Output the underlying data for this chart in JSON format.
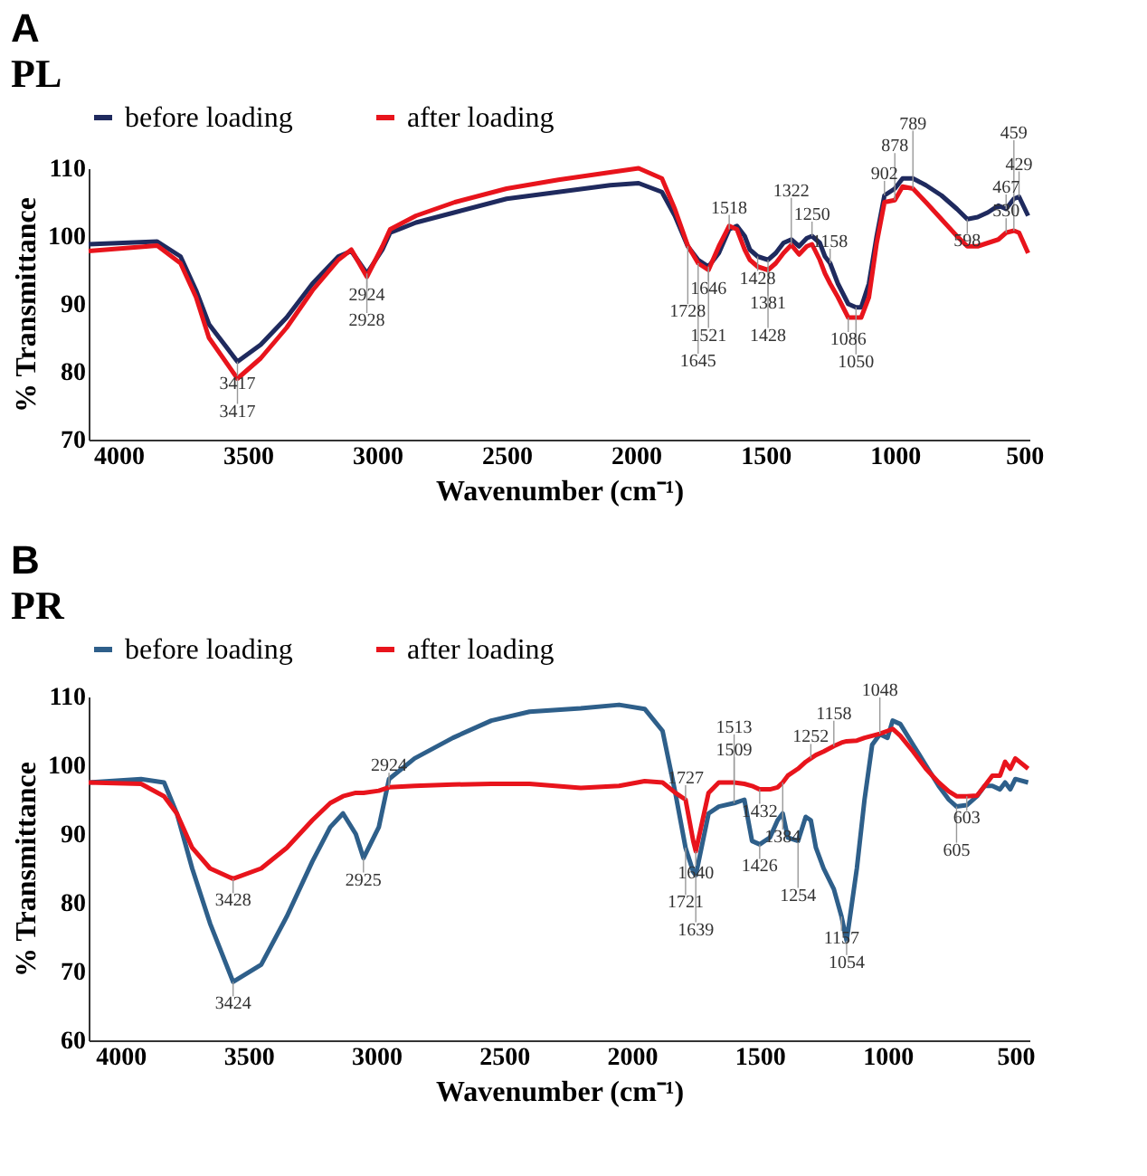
{
  "chart_data": [
    {
      "type": "line",
      "title": "A",
      "subtitle": "PL",
      "xlabel": "Wavenumber (cm⁻¹)",
      "ylabel": "% Transmittance",
      "legend": "top",
      "grid": false,
      "xlim": [
        4115,
        480
      ],
      "ylim": [
        70,
        110
      ],
      "xticks": [
        4000,
        3500,
        3000,
        2500,
        2000,
        1500,
        1000,
        500
      ],
      "yticks": [
        70,
        80,
        90,
        100,
        110
      ],
      "x": [
        4115,
        3850,
        3760,
        3700,
        3650,
        3540,
        3450,
        3350,
        3250,
        3150,
        3100,
        3040,
        2980,
        2950,
        2850,
        2700,
        2500,
        2300,
        2100,
        1990,
        1900,
        1850,
        1800,
        1760,
        1720,
        1680,
        1640,
        1610,
        1580,
        1560,
        1530,
        1490,
        1460,
        1430,
        1400,
        1370,
        1340,
        1320,
        1290,
        1270,
        1250,
        1220,
        1180,
        1150,
        1130,
        1100,
        1070,
        1040,
        1000,
        970,
        930,
        880,
        820,
        760,
        720,
        680,
        640,
        600,
        570,
        540,
        520,
        485
      ],
      "series": [
        {
          "name": "before loading",
          "color": "#1f2a5e",
          "values": [
            98.8,
            99.2,
            97,
            92,
            87,
            81.5,
            84,
            88,
            93,
            97,
            97.8,
            94.5,
            98,
            100.5,
            102,
            103.5,
            105.5,
            106.5,
            107.5,
            107.8,
            106.5,
            103,
            98.5,
            96.5,
            95.5,
            97.5,
            101,
            101.5,
            100,
            98,
            97,
            96.5,
            97.5,
            99,
            99.5,
            98.5,
            99.7,
            100,
            99,
            97,
            96,
            93,
            90,
            89.5,
            89.5,
            93,
            100,
            106,
            107,
            108.5,
            108.5,
            107.5,
            106,
            104,
            102.5,
            102.8,
            103.5,
            104.5,
            104,
            105.5,
            105.8,
            103
          ]
        },
        {
          "name": "after loading",
          "color": "#e8141c",
          "values": [
            97.8,
            98.6,
            96,
            91,
            85,
            79,
            82,
            86.5,
            92,
            96.5,
            98,
            94,
            98.5,
            101,
            103,
            105,
            107,
            108.3,
            109.4,
            110,
            108.5,
            104,
            98.6,
            96,
            95,
            98.5,
            101.5,
            101,
            98,
            96.5,
            95.5,
            95,
            96,
            97.5,
            98.7,
            97.3,
            98.5,
            98.8,
            96.5,
            94.5,
            93,
            91,
            88,
            88,
            88,
            91,
            99,
            105,
            105.3,
            107.3,
            107,
            105,
            102.5,
            100,
            98.5,
            98.5,
            99,
            99.5,
            100.5,
            100.8,
            100.5,
            97.5
          ]
        }
      ],
      "annotations": [
        {
          "text": "3417",
          "x": 3540,
          "y": 81.5
        },
        {
          "text": "3417",
          "x": 3540,
          "y": 79
        },
        {
          "text": "2924",
          "x": 3040,
          "y": 94.5
        },
        {
          "text": "2928",
          "x": 3040,
          "y": 94
        },
        {
          "text": "1646",
          "x": 1720,
          "y": 95.5
        },
        {
          "text": "1728",
          "x": 1800,
          "y": 98.5
        },
        {
          "text": "1518",
          "x": 1640,
          "y": 101
        },
        {
          "text": "1428",
          "x": 1530,
          "y": 97
        },
        {
          "text": "1381",
          "x": 1490,
          "y": 96.5
        },
        {
          "text": "1250",
          "x": 1320,
          "y": 100
        },
        {
          "text": "1158",
          "x": 1250,
          "y": 96
        },
        {
          "text": "902",
          "x": 1040,
          "y": 106
        },
        {
          "text": "598",
          "x": 720,
          "y": 102.5
        },
        {
          "text": "467",
          "x": 570,
          "y": 104
        },
        {
          "text": "429",
          "x": 520,
          "y": 105.8
        },
        {
          "text": "878",
          "x": 1000,
          "y": 105.3
        },
        {
          "text": "530",
          "x": 570,
          "y": 100.5
        },
        {
          "text": "1521",
          "x": 1720,
          "y": 95
        },
        {
          "text": "1322",
          "x": 1400,
          "y": 98.7
        },
        {
          "text": "1645",
          "x": 1760,
          "y": 96
        },
        {
          "text": "1428",
          "x": 1490,
          "y": 95
        },
        {
          "text": "789",
          "x": 930,
          "y": 107
        },
        {
          "text": "459",
          "x": 540,
          "y": 100.8
        },
        {
          "text": "1086",
          "x": 1180,
          "y": 88
        },
        {
          "text": "1050",
          "x": 1150,
          "y": 89.5
        }
      ]
    },
    {
      "type": "line",
      "title": "B",
      "subtitle": "PR",
      "xlabel": "Wavenumber (cm⁻¹)",
      "ylabel": "% Transmittance",
      "legend": "top",
      "grid": false,
      "xlim": [
        4125,
        445
      ],
      "ylim": [
        60,
        110
      ],
      "xticks": [
        4000,
        3500,
        3000,
        2500,
        2000,
        1500,
        1000,
        500
      ],
      "yticks": [
        60,
        70,
        80,
        90,
        100,
        110
      ],
      "x": [
        4125,
        3920,
        3830,
        3780,
        3720,
        3650,
        3560,
        3450,
        3350,
        3250,
        3180,
        3130,
        3080,
        3050,
        2990,
        2950,
        2850,
        2700,
        2550,
        2400,
        2200,
        2050,
        1950,
        1880,
        1830,
        1790,
        1760,
        1750,
        1700,
        1660,
        1600,
        1560,
        1530,
        1500,
        1460,
        1430,
        1410,
        1390,
        1350,
        1320,
        1300,
        1280,
        1250,
        1210,
        1180,
        1160,
        1120,
        1090,
        1060,
        1030,
        1000,
        980,
        950,
        900,
        850,
        800,
        760,
        730,
        690,
        650,
        620,
        590,
        560,
        540,
        520,
        500,
        450
      ],
      "series": [
        {
          "name": "before loading",
          "color": "#2e5f8a",
          "values": [
            97.5,
            98,
            97.5,
            93,
            85,
            77,
            68.5,
            71,
            78,
            86,
            91,
            93,
            90,
            86.5,
            91,
            98,
            101,
            104,
            106.5,
            107.8,
            108.3,
            108.8,
            108.2,
            105,
            96,
            88,
            84.5,
            84,
            93,
            94,
            94.5,
            95,
            89,
            88.5,
            89.5,
            92,
            93,
            89.5,
            89,
            92.5,
            92,
            88,
            85,
            82,
            78,
            74.5,
            85,
            95,
            103,
            104.5,
            104,
            106.5,
            106,
            103,
            100,
            97,
            95,
            94,
            94.2,
            95.5,
            97,
            97,
            96.5,
            97.5,
            96.5,
            98,
            97.5
          ]
        },
        {
          "name": "after loading",
          "color": "#e8141c",
          "values": [
            97.5,
            97.3,
            95.5,
            93,
            88,
            85,
            83.5,
            85,
            88,
            92,
            94.5,
            95.5,
            96,
            96,
            96.3,
            96.8,
            97,
            97.2,
            97.3,
            97.3,
            96.7,
            97,
            97.7,
            97.5,
            96,
            95,
            89,
            87.5,
            96,
            97.5,
            97.5,
            97.3,
            97,
            96.5,
            96.5,
            96.8,
            97.5,
            98.5,
            99.5,
            100.5,
            101,
            101.5,
            102,
            102.8,
            103.3,
            103.5,
            103.6,
            104,
            104.3,
            104.6,
            105,
            105.3,
            104.3,
            102,
            99.5,
            97.5,
            96.2,
            95.5,
            95.5,
            95.6,
            97,
            98.5,
            98.5,
            100.5,
            99.5,
            101,
            99.5
          ]
        }
      ],
      "annotations": [
        {
          "text": "3428",
          "x": 3560,
          "y": 83.5
        },
        {
          "text": "3424",
          "x": 3560,
          "y": 68.5
        },
        {
          "text": "2924",
          "x": 2950,
          "y": 96.8
        },
        {
          "text": "2925",
          "x": 3050,
          "y": 86.5
        },
        {
          "text": "1727",
          "x": 1790,
          "y": 95
        },
        {
          "text": "1509",
          "x": 1600,
          "y": 97.5
        },
        {
          "text": "1640",
          "x": 1750,
          "y": 87.5
        },
        {
          "text": "1432",
          "x": 1500,
          "y": 96.5
        },
        {
          "text": "1384",
          "x": 1410,
          "y": 97.5
        },
        {
          "text": "1252",
          "x": 1300,
          "y": 101
        },
        {
          "text": "1158",
          "x": 1210,
          "y": 102.8
        },
        {
          "text": "1048",
          "x": 1030,
          "y": 104.6
        },
        {
          "text": "603",
          "x": 690,
          "y": 95.5
        },
        {
          "text": "605",
          "x": 730,
          "y": 94
        },
        {
          "text": "1721",
          "x": 1790,
          "y": 88
        },
        {
          "text": "1639",
          "x": 1750,
          "y": 84
        },
        {
          "text": "1513",
          "x": 1600,
          "y": 94.5
        },
        {
          "text": "1426",
          "x": 1500,
          "y": 88.5
        },
        {
          "text": "1254",
          "x": 1350,
          "y": 89
        },
        {
          "text": "1157",
          "x": 1180,
          "y": 78
        },
        {
          "text": "1054",
          "x": 1160,
          "y": 74.5
        }
      ]
    }
  ]
}
